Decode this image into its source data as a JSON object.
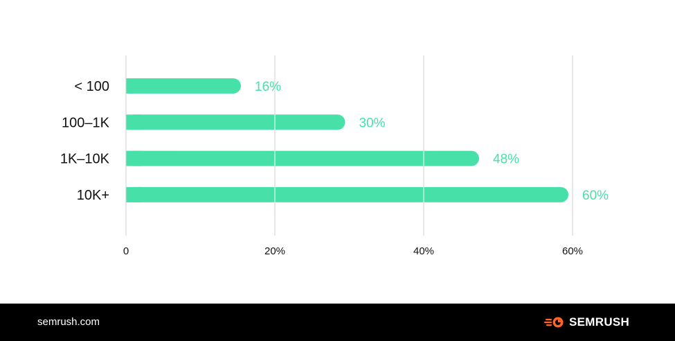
{
  "chart_data": {
    "type": "bar",
    "orientation": "horizontal",
    "categories": [
      "< 100",
      "100–1K",
      "1K–10K",
      "10K+"
    ],
    "values": [
      16,
      30,
      48,
      60
    ],
    "value_labels": [
      "16%",
      "30%",
      "48%",
      "60%"
    ],
    "x_ticks": [
      0,
      20,
      40,
      60
    ],
    "x_tick_labels": [
      "0",
      "20%",
      "40%",
      "60%"
    ],
    "xlim": [
      0,
      60
    ],
    "bar_color": "#46e0a8",
    "label_color": "#46e0a8",
    "grid": true
  },
  "footer": {
    "site": "semrush.com",
    "logo_text": "SEMRUSH",
    "logo_color": "#ff642d"
  }
}
